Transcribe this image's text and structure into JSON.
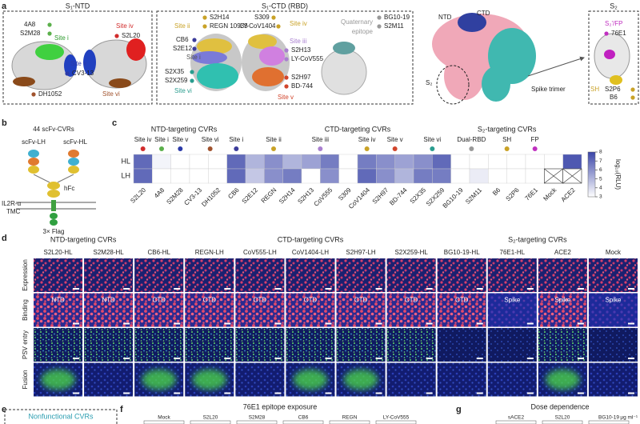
{
  "panel_a": {
    "letter": "a",
    "ntd_title": "S₁-NTD",
    "ctd_title": "S₁-CTD (RBD)",
    "s2_title": "S₂",
    "labels": [
      "4A8",
      "S2M28",
      "Site i",
      "Site iv",
      "S2L20",
      "Site v",
      "CV3-13",
      "DH1052",
      "Site vi",
      "Site ii",
      "S2H14",
      "REGN 10933",
      "CB6",
      "S2E12",
      "Site i",
      "S2X35",
      "S2X259",
      "Site vi",
      "S309",
      "LY-CoV1404",
      "Site iv",
      "Site iii",
      "S2H13",
      "LY-CoV555",
      "S2H97",
      "BD-744",
      "Site v",
      "Quaternary",
      "epitope",
      "BG10-19",
      "S2M11",
      "NTD",
      "CTD",
      "S₂",
      "Spike trimer",
      "S₂'/FP",
      "76E1",
      "SH",
      "S2P6",
      "B6"
    ]
  },
  "panel_b": {
    "letter": "b",
    "title": "44 scFv-CVRs",
    "lh": "scFv-LH",
    "hl": "scFv-HL",
    "hfc": "hFc",
    "il2r": "IL2R-α",
    "tmc": "TMC",
    "flag": "3× Flag"
  },
  "panel_c": {
    "letter": "c",
    "groups": [
      "NTD-targeting CVRs",
      "CTD-targeting CVRs",
      "S₂-targeting CVRs"
    ],
    "sites": [
      "Site iv",
      "Site i",
      "Site v",
      "Site vi",
      "Site i",
      "Site ii",
      "Site iii",
      "Site iv",
      "Site v",
      "Site vi",
      "Dual-RBD",
      "SH",
      "FP"
    ],
    "rows": [
      "HL",
      "LH"
    ],
    "columns": [
      "S2L20",
      "4A8",
      "S2M28",
      "CV3-13",
      "DH1052",
      "CB6",
      "S2E12",
      "REGN",
      "S2H14",
      "S2H13",
      "CoV555",
      "S309",
      "CoV1404",
      "S2H97",
      "BD-744",
      "S2X35",
      "S2X259",
      "BG10-19",
      "S2M11",
      "B6",
      "S2P6",
      "76E1",
      "Mock",
      "ACE2"
    ],
    "values": [
      [
        7,
        3.3,
        3,
        3,
        3,
        7,
        5,
        6,
        5,
        5.5,
        6.5,
        3,
        6.5,
        6,
        5.5,
        6,
        7,
        3,
        3,
        3,
        3,
        3,
        3,
        7.5
      ],
      [
        7,
        3,
        3,
        3,
        3,
        7,
        4.5,
        6,
        6.5,
        3,
        6,
        3,
        7,
        6,
        5,
        6.5,
        6.5,
        3,
        3.5,
        3,
        3,
        3,
        null,
        null
      ]
    ],
    "colorbar": {
      "label": "log₁₀(RLU)",
      "lim": [
        3,
        8
      ],
      "ticks": [
        3,
        4,
        5,
        6,
        7,
        8
      ]
    }
  },
  "panel_d": {
    "letter": "d",
    "groups": [
      "NTD-targeting CVRs",
      "CTD-targeting CVRs",
      "S₂-targeting CVRs"
    ],
    "columns": [
      "S2L20-HL",
      "S2M28-HL",
      "CB6-HL",
      "REGN-LH",
      "CoV555-LH",
      "CoV1404-LH",
      "S2H97-LH",
      "S2X259-HL",
      "BG10-19-HL",
      "76E1-HL",
      "ACE2",
      "Mock"
    ],
    "rows": [
      "Expression",
      "Binding",
      "PSV entry",
      "Fusion"
    ],
    "binding_labels": [
      "NTD",
      "NTD",
      "CTD",
      "CTD",
      "CTD",
      "CTD",
      "CTD",
      "CTD",
      "CTD",
      "Spike",
      "Spike",
      "Spike"
    ]
  },
  "panel_e": {
    "letter": "e",
    "title": "Nonfunctional CVRs"
  },
  "panel_f": {
    "letter": "f",
    "title": "76E1 epitope exposure",
    "columns": [
      "Mock",
      "S2L20",
      "S2M28",
      "CB6",
      "REGN",
      "LY-CoV555"
    ]
  },
  "panel_g": {
    "letter": "g",
    "title": "Dose dependence",
    "columns": [
      "sACE2",
      "S2L20",
      "BG10-19"
    ],
    "unit": "µg ml⁻¹"
  }
}
